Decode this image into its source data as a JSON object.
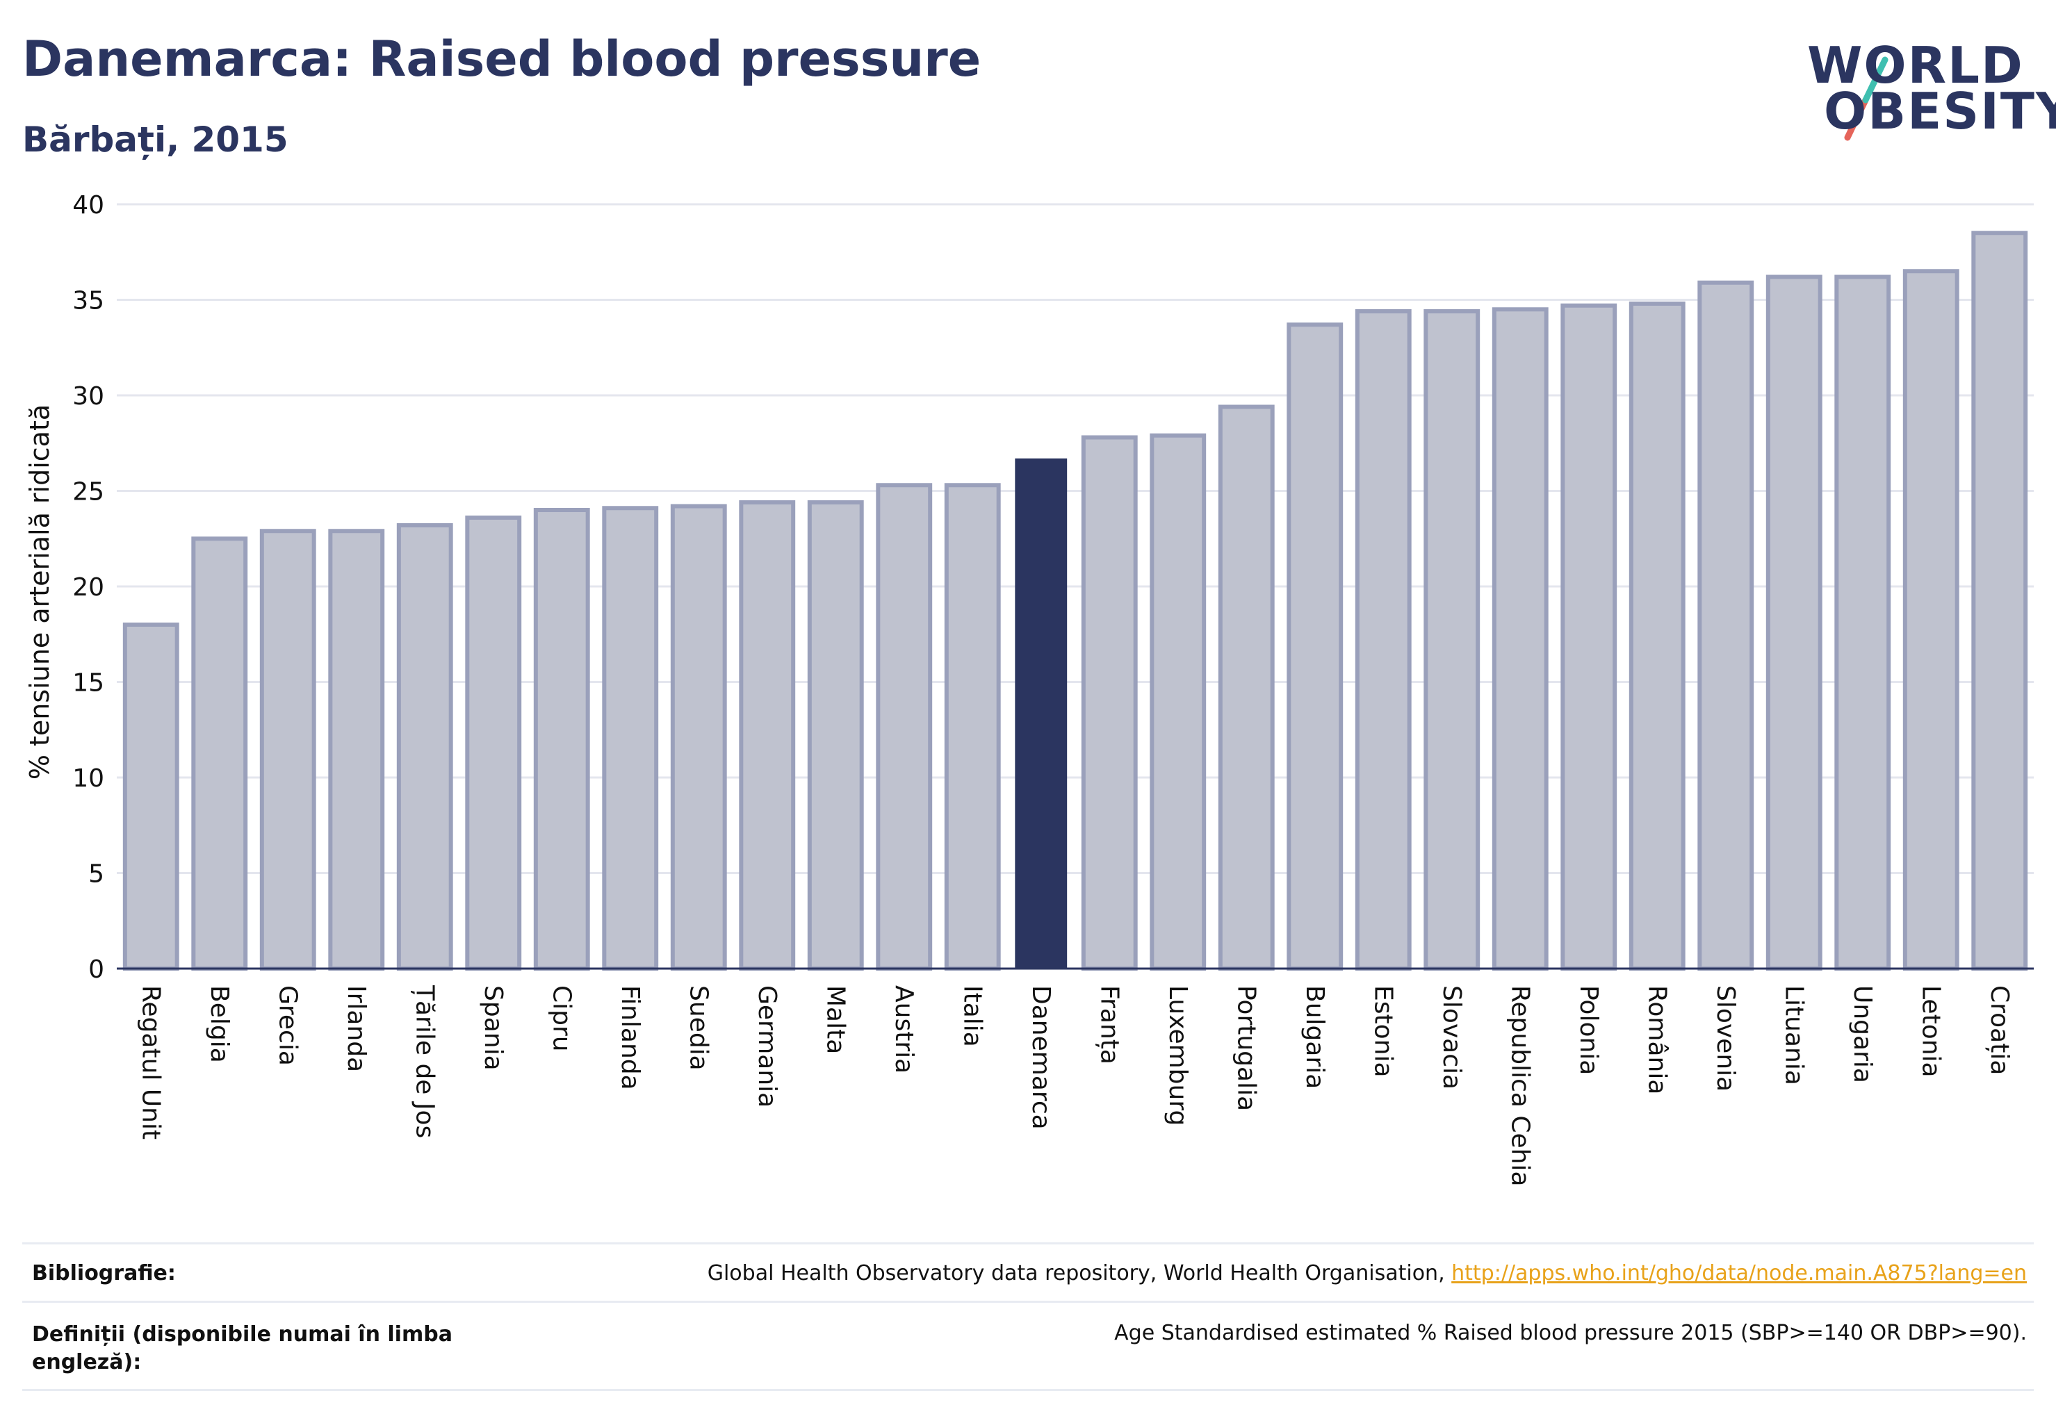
{
  "header": {
    "title": "Danemarca: Raised blood pressure",
    "subtitle": "Bărbați, 2015"
  },
  "logo": {
    "line1": "WORLD",
    "line2": "OBESITY",
    "accent_colors": [
      "#3fbfb0",
      "#e5645a"
    ]
  },
  "colors": {
    "bar_fill": "#bfc2cf",
    "bar_stroke": "#9aa0bb",
    "highlight": "#2b3560",
    "grid": "#e4e6ee",
    "axis_text": "#111111"
  },
  "chart_data": {
    "type": "bar",
    "title": "",
    "xlabel": "",
    "ylabel": "% tensiune arterială ridicată",
    "ylim": [
      0,
      40
    ],
    "yticks": [
      0,
      5,
      10,
      15,
      20,
      25,
      30,
      35,
      40
    ],
    "highlight": "Danemarca",
    "grid": true,
    "categories": [
      "Regatul Unit",
      "Belgia",
      "Grecia",
      "Irlanda",
      "Țările de Jos",
      "Spania",
      "Cipru",
      "Finlanda",
      "Suedia",
      "Germania",
      "Malta",
      "Austria",
      "Italia",
      "Danemarca",
      "Franța",
      "Luxemburg",
      "Portugalia",
      "Bulgaria",
      "Estonia",
      "Slovacia",
      "Republica Cehia",
      "Polonia",
      "România",
      "Slovenia",
      "Lituania",
      "Ungaria",
      "Letonia",
      "Croația"
    ],
    "values": [
      18.0,
      22.5,
      22.9,
      22.9,
      23.2,
      23.6,
      24.0,
      24.1,
      24.2,
      24.4,
      24.4,
      25.3,
      25.3,
      26.7,
      27.8,
      27.9,
      29.4,
      33.7,
      34.4,
      34.4,
      34.5,
      34.7,
      34.8,
      35.9,
      36.2,
      36.2,
      36.5,
      38.5
    ]
  },
  "footer": {
    "bibliography_label": "Bibliografie:",
    "bibliography_text": "Global Health Observatory data repository, World Health Organisation, ",
    "bibliography_link": "http://apps.who.int/gho/data/node.main.A875?lang=en",
    "definitions_label_line1": "Definiții (disponibile numai în limba",
    "definitions_label_line2": "engleză):",
    "definitions_text": "Age Standardised estimated % Raised blood pressure 2015 (SBP>=140 OR DBP>=90)."
  }
}
